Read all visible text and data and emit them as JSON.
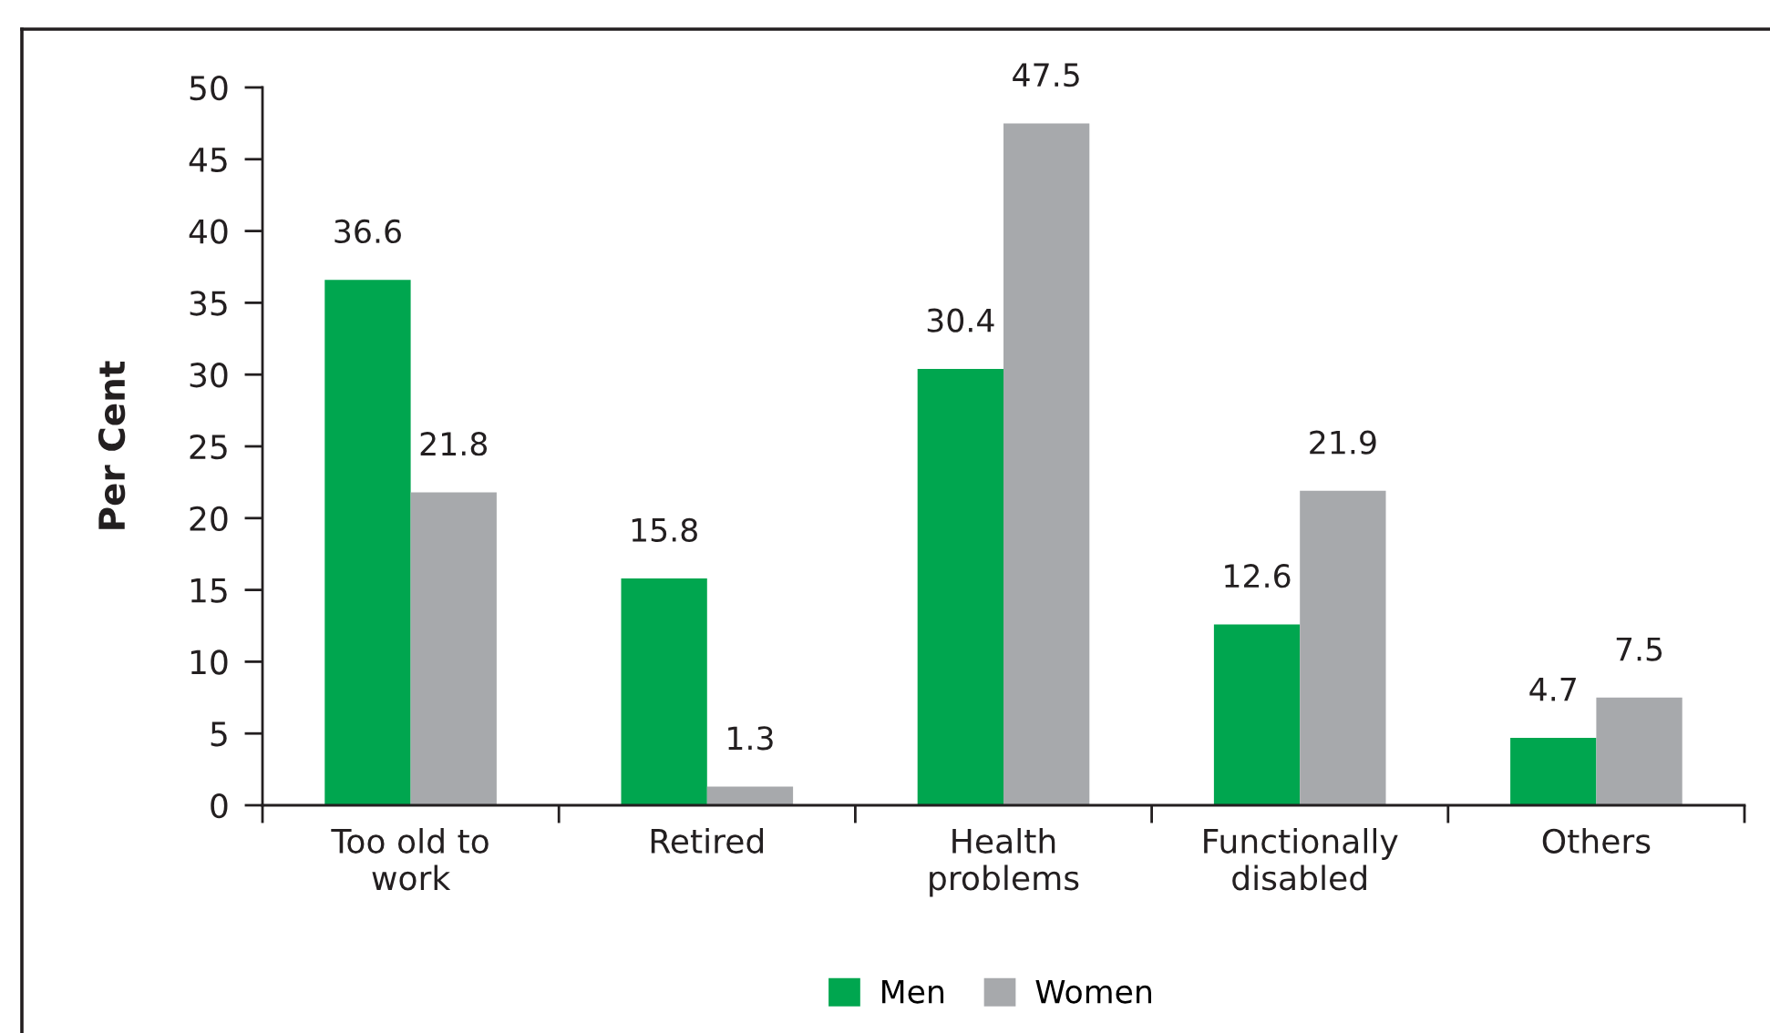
{
  "chart_data": {
    "type": "bar",
    "ylabel": "Per Cent",
    "categories": [
      "Too old to\nwork",
      "Retired",
      "Health\nproblems",
      "Functionally\ndisabled",
      "Others"
    ],
    "series": [
      {
        "name": "Men",
        "color": "#00a64f",
        "values": [
          36.6,
          15.8,
          30.4,
          12.6,
          4.7
        ]
      },
      {
        "name": "Women",
        "color": "#a7a9ac",
        "values": [
          21.8,
          1.3,
          47.5,
          21.9,
          7.5
        ]
      }
    ],
    "ylim": [
      0,
      50
    ],
    "yticks": [
      0,
      5,
      10,
      15,
      20,
      25,
      30,
      35,
      40,
      45,
      50
    ],
    "data_labels": true,
    "grid": false,
    "legend": "bottom"
  }
}
